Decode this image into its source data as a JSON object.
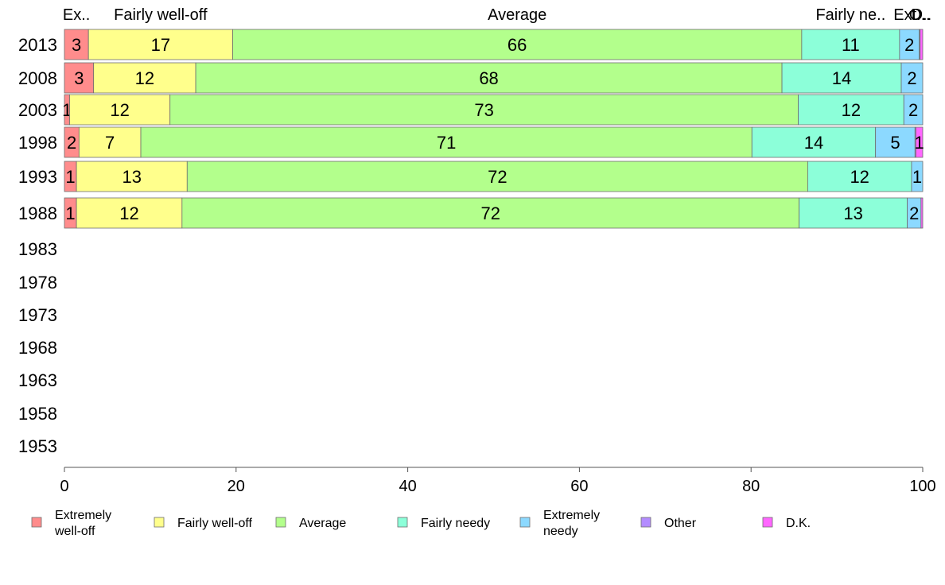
{
  "chart_data": {
    "type": "bar",
    "orientation": "horizontal",
    "stacked": true,
    "xlim": [
      0,
      100
    ],
    "x_ticks": [
      "0",
      "20",
      "40",
      "60",
      "80",
      "100"
    ],
    "categories": [
      "2013",
      "2008",
      "2003",
      "1998",
      "1993",
      "1988",
      "1983",
      "1978",
      "1973",
      "1968",
      "1963",
      "1958",
      "1953"
    ],
    "series": [
      {
        "name": "Extremely well-off",
        "legend_lines": [
          "Extremely",
          "well-off"
        ],
        "top_label": "Ex..",
        "color": "#FF8C8C",
        "values": [
          2.8,
          3.4,
          0.6,
          1.7,
          1.4,
          1.4,
          null,
          null,
          null,
          null,
          null,
          null,
          null
        ],
        "labels": [
          "3",
          "3",
          "1",
          "2",
          "1",
          "1"
        ]
      },
      {
        "name": "Fairly well-off",
        "legend_lines": [
          "Fairly well-off"
        ],
        "top_label": "Fairly well-off",
        "color": "#FFFF8C",
        "values": [
          16.8,
          11.9,
          11.7,
          7.2,
          12.9,
          12.3,
          null,
          null,
          null,
          null,
          null,
          null,
          null
        ],
        "labels": [
          "17",
          "12",
          "12",
          "7",
          "13",
          "12"
        ]
      },
      {
        "name": "Average",
        "legend_lines": [
          "Average"
        ],
        "top_label": "Average",
        "color": "#B3FF8C",
        "values": [
          66.3,
          68.3,
          73.2,
          71.2,
          72.3,
          71.9,
          null,
          null,
          null,
          null,
          null,
          null,
          null
        ],
        "labels": [
          "66",
          "68",
          "73",
          "71",
          "72",
          "72"
        ]
      },
      {
        "name": "Fairly needy",
        "legend_lines": [
          "Fairly needy"
        ],
        "top_label": "Fairly ne..",
        "color": "#8CFFD9",
        "values": [
          11.4,
          13.9,
          12.3,
          14.4,
          12.1,
          12.6,
          null,
          null,
          null,
          null,
          null,
          null,
          null
        ],
        "labels": [
          "11",
          "14",
          "12",
          "14",
          "12",
          "13"
        ]
      },
      {
        "name": "Extremely needy",
        "legend_lines": [
          "Extremely",
          "needy"
        ],
        "top_label": "Ext..",
        "color": "#8CD9FF",
        "values": [
          2.3,
          2.5,
          2.2,
          4.6,
          1.3,
          1.6,
          null,
          null,
          null,
          null,
          null,
          null,
          null
        ],
        "labels": [
          "2",
          "2",
          "2",
          "5",
          "1",
          "2"
        ]
      },
      {
        "name": "Other",
        "legend_lines": [
          "Other"
        ],
        "top_label": "O..",
        "color": "#B38CFF",
        "values": [
          0.1,
          0.0,
          0.0,
          0.1,
          0.0,
          0.0,
          null,
          null,
          null,
          null,
          null,
          null,
          null
        ],
        "labels": [
          "",
          "",
          "",
          "",
          "",
          ""
        ]
      },
      {
        "name": "D.K.",
        "legend_lines": [
          "D.K."
        ],
        "top_label": "D..",
        "color": "#FF66FF",
        "values": [
          0.3,
          0.0,
          0.0,
          0.8,
          0.0,
          0.2,
          null,
          null,
          null,
          null,
          null,
          null,
          null
        ],
        "labels": [
          "",
          "",
          "",
          "1",
          "",
          ""
        ]
      }
    ],
    "legend_position": "bottom",
    "grid": false
  }
}
